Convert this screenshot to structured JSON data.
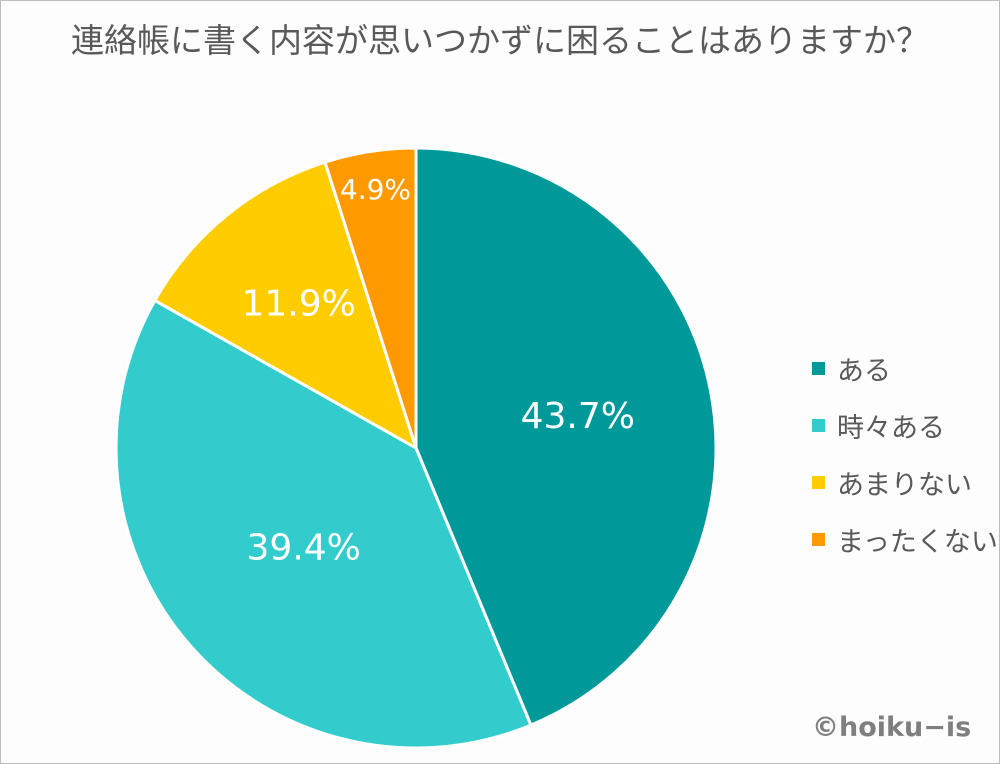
{
  "title": "連絡帳に書く内容が思いつかずに困ることはありますか？",
  "credit": "©hoiku−is",
  "chart_data": {
    "type": "pie",
    "title": "連絡帳に書く内容が思いつかずに困ることはありますか？",
    "categories": [
      "ある",
      "時々ある",
      "あまりない",
      "まったくない"
    ],
    "values": [
      43.7,
      39.4,
      11.9,
      4.9
    ],
    "labels": [
      "43.7%",
      "39.4%",
      "11.9%",
      "4.9%"
    ],
    "colors": [
      "#009999",
      "#33CCCC",
      "#FFCC00",
      "#FF9900"
    ],
    "start_angle": "12 o'clock, clockwise",
    "legend_position": "right"
  },
  "legend": [
    {
      "label": "ある",
      "color": "#009999"
    },
    {
      "label": "時々ある",
      "color": "#33CCCC"
    },
    {
      "label": "あまりない",
      "color": "#FFCC00"
    },
    {
      "label": "まったくない",
      "color": "#FF9900"
    }
  ]
}
